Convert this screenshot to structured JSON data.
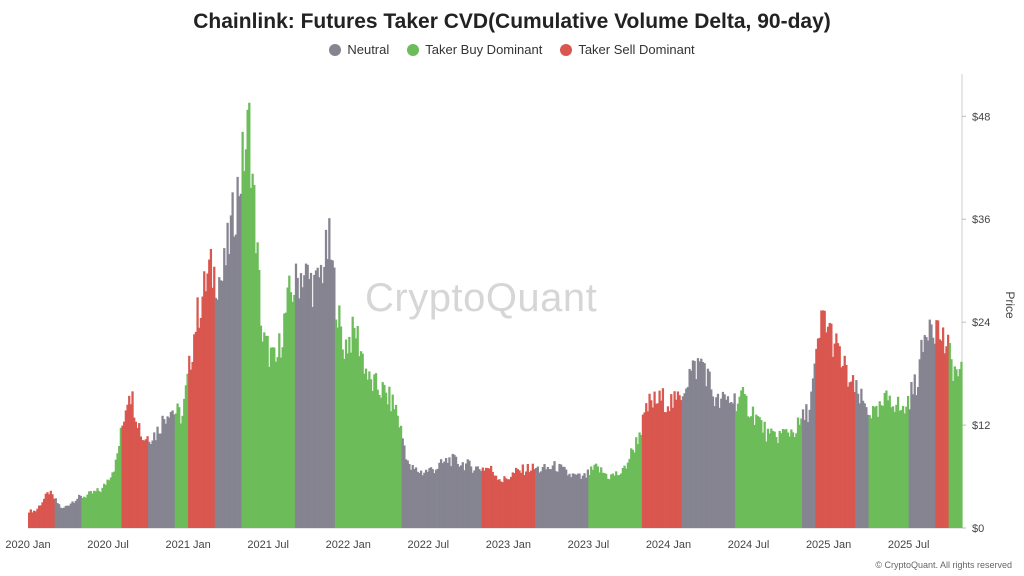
{
  "title": "Chainlink: Futures Taker CVD(Cumulative Volume Delta, 90-day)",
  "watermark": "CryptoQuant",
  "copyright": "© CryptoQuant. All rights reserved",
  "legend": [
    {
      "label": "Neutral",
      "color": "#858490"
    },
    {
      "label": "Taker Buy Dominant",
      "color": "#6cbd5a"
    },
    {
      "label": "Taker Sell Dominant",
      "color": "#d9574f"
    }
  ],
  "chart_data": {
    "type": "area",
    "title": "Chainlink: Futures Taker CVD(Cumulative Volume Delta, 90-day)",
    "ylabel": "Price",
    "y_axis_side": "right",
    "ylim": [
      0,
      52
    ],
    "y_ticks": [
      0,
      12,
      24,
      36,
      48
    ],
    "y_tick_labels": [
      "$0",
      "$12",
      "$24",
      "$36",
      "$48"
    ],
    "x_tick_labels": [
      "2020 Jan",
      "2020 Jul",
      "2021 Jan",
      "2021 Jul",
      "2022 Jan",
      "2022 Jul",
      "2023 Jan",
      "2023 Jul",
      "2024 Jan",
      "2024 Jul",
      "2025 Jan",
      "2025 Jul"
    ],
    "xlim": [
      "2020-01",
      "2025-10"
    ],
    "legend_position": "top-center",
    "grid": false,
    "regimes": {
      "neutral": "#858490",
      "buy": "#6cbd5a",
      "sell": "#d9574f"
    },
    "series": [
      {
        "x": "2020-01",
        "price": 2.0,
        "regime": "sell"
      },
      {
        "x": "2020-02",
        "price": 4.2,
        "regime": "sell"
      },
      {
        "x": "2020-03",
        "price": 2.2,
        "regime": "neutral"
      },
      {
        "x": "2020-04",
        "price": 3.4,
        "regime": "neutral"
      },
      {
        "x": "2020-05",
        "price": 3.9,
        "regime": "buy"
      },
      {
        "x": "2020-06",
        "price": 4.5,
        "regime": "buy"
      },
      {
        "x": "2020-07",
        "price": 7.5,
        "regime": "buy"
      },
      {
        "x": "2020-08",
        "price": 16.5,
        "regime": "sell"
      },
      {
        "x": "2020-09",
        "price": 10.5,
        "regime": "sell"
      },
      {
        "x": "2020-10",
        "price": 11.0,
        "regime": "neutral"
      },
      {
        "x": "2020-11",
        "price": 14.0,
        "regime": "neutral"
      },
      {
        "x": "2020-12",
        "price": 13.0,
        "regime": "buy"
      },
      {
        "x": "2021-01",
        "price": 24.0,
        "regime": "sell"
      },
      {
        "x": "2021-02",
        "price": 30.0,
        "regime": "sell"
      },
      {
        "x": "2021-03",
        "price": 29.0,
        "regime": "neutral"
      },
      {
        "x": "2021-04",
        "price": 38.0,
        "regime": "neutral"
      },
      {
        "x": "2021-05",
        "price": 47.0,
        "regime": "buy"
      },
      {
        "x": "2021-06",
        "price": 22.0,
        "regime": "buy"
      },
      {
        "x": "2021-07",
        "price": 19.0,
        "regime": "buy"
      },
      {
        "x": "2021-08",
        "price": 27.0,
        "regime": "buy"
      },
      {
        "x": "2021-09",
        "price": 30.0,
        "regime": "neutral"
      },
      {
        "x": "2021-10",
        "price": 28.0,
        "regime": "neutral"
      },
      {
        "x": "2021-11",
        "price": 33.0,
        "regime": "neutral"
      },
      {
        "x": "2021-12",
        "price": 21.0,
        "regime": "buy"
      },
      {
        "x": "2022-01",
        "price": 23.0,
        "regime": "buy"
      },
      {
        "x": "2022-02",
        "price": 17.0,
        "regime": "buy"
      },
      {
        "x": "2022-03",
        "price": 16.0,
        "regime": "buy"
      },
      {
        "x": "2022-04",
        "price": 14.0,
        "regime": "buy"
      },
      {
        "x": "2022-05",
        "price": 7.0,
        "regime": "neutral"
      },
      {
        "x": "2022-06",
        "price": 6.5,
        "regime": "neutral"
      },
      {
        "x": "2022-07",
        "price": 7.0,
        "regime": "neutral"
      },
      {
        "x": "2022-08",
        "price": 8.0,
        "regime": "neutral"
      },
      {
        "x": "2022-09",
        "price": 7.5,
        "regime": "neutral"
      },
      {
        "x": "2022-10",
        "price": 7.0,
        "regime": "neutral"
      },
      {
        "x": "2022-11",
        "price": 7.0,
        "regime": "sell"
      },
      {
        "x": "2022-12",
        "price": 5.5,
        "regime": "sell"
      },
      {
        "x": "2023-01",
        "price": 6.5,
        "regime": "sell"
      },
      {
        "x": "2023-02",
        "price": 7.0,
        "regime": "sell"
      },
      {
        "x": "2023-03",
        "price": 6.8,
        "regime": "neutral"
      },
      {
        "x": "2023-04",
        "price": 7.2,
        "regime": "neutral"
      },
      {
        "x": "2023-05",
        "price": 6.2,
        "regime": "neutral"
      },
      {
        "x": "2023-06",
        "price": 5.8,
        "regime": "neutral"
      },
      {
        "x": "2023-07",
        "price": 7.0,
        "regime": "buy"
      },
      {
        "x": "2023-08",
        "price": 6.0,
        "regime": "buy"
      },
      {
        "x": "2023-09",
        "price": 6.5,
        "regime": "buy"
      },
      {
        "x": "2023-10",
        "price": 10.0,
        "regime": "buy"
      },
      {
        "x": "2023-11",
        "price": 14.5,
        "regime": "sell"
      },
      {
        "x": "2023-12",
        "price": 15.0,
        "regime": "sell"
      },
      {
        "x": "2024-01",
        "price": 14.5,
        "regime": "sell"
      },
      {
        "x": "2024-02",
        "price": 18.0,
        "regime": "neutral"
      },
      {
        "x": "2024-03",
        "price": 19.5,
        "regime": "neutral"
      },
      {
        "x": "2024-04",
        "price": 14.5,
        "regime": "neutral"
      },
      {
        "x": "2024-05",
        "price": 15.0,
        "regime": "neutral"
      },
      {
        "x": "2024-06",
        "price": 15.0,
        "regime": "buy"
      },
      {
        "x": "2024-07",
        "price": 13.0,
        "regime": "buy"
      },
      {
        "x": "2024-08",
        "price": 10.5,
        "regime": "buy"
      },
      {
        "x": "2024-09",
        "price": 11.0,
        "regime": "buy"
      },
      {
        "x": "2024-10",
        "price": 11.5,
        "regime": "buy"
      },
      {
        "x": "2024-11",
        "price": 14.0,
        "regime": "neutral"
      },
      {
        "x": "2024-12",
        "price": 25.0,
        "regime": "sell"
      },
      {
        "x": "2025-01",
        "price": 21.0,
        "regime": "sell"
      },
      {
        "x": "2025-02",
        "price": 17.0,
        "regime": "sell"
      },
      {
        "x": "2025-03",
        "price": 14.5,
        "regime": "neutral"
      },
      {
        "x": "2025-04",
        "price": 13.0,
        "regime": "buy"
      },
      {
        "x": "2025-05",
        "price": 15.5,
        "regime": "buy"
      },
      {
        "x": "2025-06",
        "price": 13.5,
        "regime": "buy"
      },
      {
        "x": "2025-07",
        "price": 17.0,
        "regime": "neutral"
      },
      {
        "x": "2025-08",
        "price": 25.0,
        "regime": "neutral"
      },
      {
        "x": "2025-09",
        "price": 22.0,
        "regime": "sell"
      },
      {
        "x": "2025-10",
        "price": 18.0,
        "regime": "buy"
      }
    ]
  }
}
